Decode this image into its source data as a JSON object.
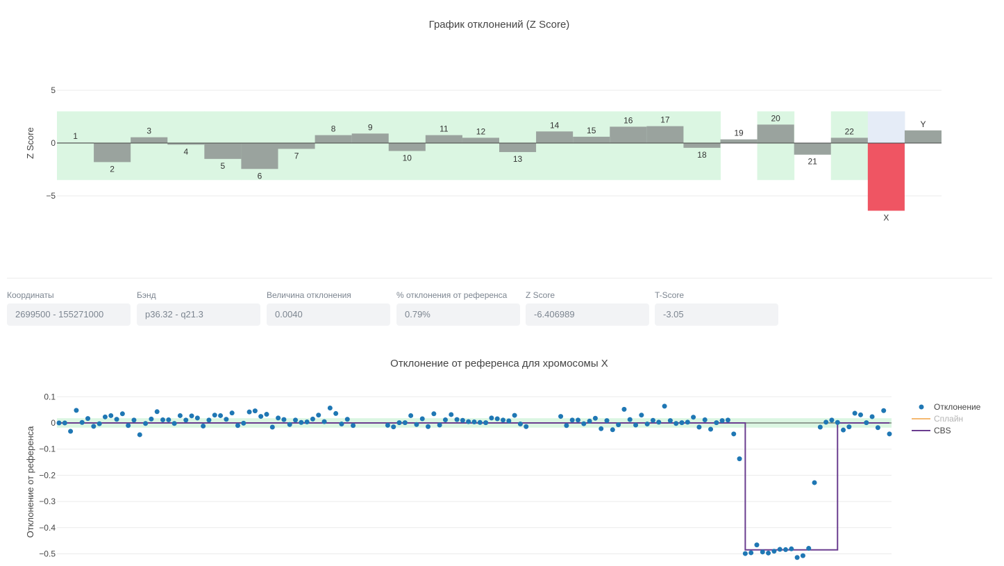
{
  "chart_data": [
    {
      "type": "bar",
      "title": "График отклонений (Z Score)",
      "ylabel": "Z Score",
      "ylim": [
        -9.6,
        9.6
      ],
      "yticks": [
        5,
        0,
        -5
      ],
      "ytick_labels": [
        "5",
        "0",
        "−5"
      ],
      "normal_band": [
        -3.5,
        3.0
      ],
      "band_color": "#dbf6e2",
      "bar_color": "#9aa39e",
      "highlight_color": "#ef5563",
      "highlight_band_color": "#e5ecf7",
      "categories": [
        "1",
        "2",
        "3",
        "4",
        "5",
        "6",
        "7",
        "8",
        "9",
        "10",
        "11",
        "12",
        "13",
        "14",
        "15",
        "16",
        "17",
        "18",
        "19",
        "20",
        "21",
        "22",
        "X",
        "Y"
      ],
      "values": [
        0.05,
        -1.8,
        0.55,
        -0.15,
        -1.5,
        -2.45,
        -0.55,
        0.75,
        0.9,
        -0.75,
        0.75,
        0.5,
        -0.85,
        1.1,
        0.6,
        1.55,
        1.6,
        -0.45,
        0.35,
        1.75,
        -1.1,
        0.5,
        -6.406989,
        1.2
      ],
      "highlighted": "X",
      "band_gaps": [
        "19",
        "21",
        "Y"
      ]
    },
    {
      "type": "scatter",
      "title": "Отклонение от референса для хромосомы X",
      "ylabel": "Отклонение от референса",
      "ylim": [
        -0.52,
        0.13
      ],
      "yticks": [
        0.1,
        0,
        -0.1,
        -0.2,
        -0.3,
        -0.4,
        -0.5
      ],
      "ytick_labels": [
        "0.1",
        "0",
        "−0.1",
        "−0.2",
        "−0.3",
        "−0.4",
        "−0.5"
      ],
      "normal_band": [
        -0.018,
        0.018
      ],
      "band_color": "#dbf6e2",
      "point_color": "#1f77b4",
      "series": [
        {
          "name": "Отклонение",
          "values": [
            0.0,
            0.0,
            -0.032,
            0.048,
            0.002,
            0.017,
            -0.013,
            -0.003,
            0.023,
            0.028,
            0.014,
            0.035,
            -0.01,
            0.011,
            -0.045,
            -0.002,
            0.015,
            0.043,
            0.012,
            0.012,
            -0.002,
            0.028,
            0.011,
            0.027,
            0.019,
            -0.012,
            0.011,
            0.03,
            0.028,
            0.014,
            0.038,
            -0.01,
            -0.001,
            0.042,
            0.046,
            0.025,
            0.033,
            -0.016,
            0.019,
            0.013,
            -0.006,
            0.011,
            0.002,
            0.004,
            0.015,
            0.03,
            0.005,
            0.057,
            0.036,
            -0.004,
            0.014,
            -0.01,
            null,
            null,
            null,
            null,
            null,
            -0.009,
            -0.015,
            0.001,
            0.001,
            0.028,
            -0.006,
            0.016,
            -0.014,
            0.035,
            -0.008,
            0.012,
            0.032,
            0.013,
            0.01,
            0.005,
            0.004,
            0.002,
            0.001,
            0.019,
            0.016,
            0.011,
            0.008,
            0.029,
            -0.004,
            -0.014,
            null,
            null,
            null,
            null,
            null,
            0.025,
            -0.01,
            0.011,
            0.011,
            -0.003,
            0.007,
            0.018,
            -0.022,
            0.009,
            -0.026,
            -0.007,
            0.052,
            0.013,
            -0.008,
            0.03,
            -0.004,
            0.01,
            0.003,
            0.064,
            0.009,
            -0.002,
            0.001,
            0.003,
            0.022,
            -0.016,
            0.012,
            -0.024,
            0.001,
            0.009,
            0.011,
            -0.042,
            -0.137,
            -0.499,
            -0.496,
            -0.466,
            -0.493,
            -0.497,
            -0.49,
            -0.483,
            -0.484,
            -0.481,
            -0.514,
            -0.507,
            -0.479,
            -0.228,
            -0.016,
            0.003,
            0.011,
            0.002,
            -0.027,
            -0.015,
            0.037,
            0.031,
            0.001,
            0.024,
            -0.018,
            0.047,
            -0.042
          ]
        },
        {
          "name": "Сплайн",
          "color": "#f5b971",
          "values": []
        },
        {
          "name": "CBS",
          "color": "#6a3d8f",
          "segments": [
            {
              "from": 0,
              "to": 119,
              "value": 0.0
            },
            {
              "from": 119,
              "to": 135,
              "value": -0.485
            },
            {
              "from": 135,
              "to": 157,
              "value": 0.0
            }
          ]
        }
      ],
      "legend": [
        "Отклонение",
        "Сплайн",
        "CBS"
      ],
      "legend_placement": "right"
    }
  ],
  "info": [
    {
      "label": "Координаты",
      "value": "2699500 - 155271000"
    },
    {
      "label": "Бэнд",
      "value": "p36.32 - q21.3"
    },
    {
      "label": "Величина отклонения",
      "value": "0.0040"
    },
    {
      "label": "% отклонения от референса",
      "value": "0.79%"
    },
    {
      "label": "Z Score",
      "value": "-6.406989"
    },
    {
      "label": "T-Score",
      "value": "-3.05"
    }
  ]
}
